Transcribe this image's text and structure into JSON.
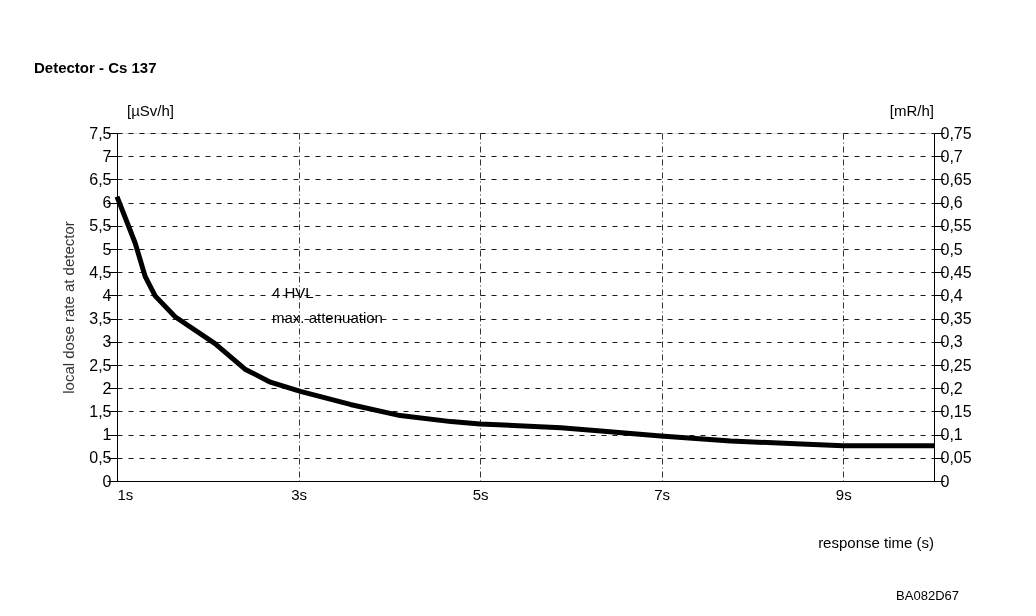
{
  "chart_data": {
    "type": "line",
    "title": "Detector - Cs 137",
    "xlabel": "response time (s)",
    "ylabel": "local dose rate at detector",
    "y2label": "[mR/h]",
    "annotations": [
      "[µSv/h]",
      "4 HVL",
      "max. attenuation",
      "BA082D67"
    ],
    "series": [
      {
        "color": "#000000",
        "x": [
          1,
          1.2,
          1.31,
          1.42,
          1.64,
          2.08,
          2.41,
          2.69,
          3.02,
          3.57,
          4.12,
          4.68,
          5.0,
          5.89,
          6.33,
          6.99,
          7.76,
          8.54,
          9,
          10
        ],
        "values": [
          6.13,
          5.13,
          4.41,
          3.99,
          3.54,
          2.96,
          2.41,
          2.13,
          1.93,
          1.65,
          1.41,
          1.28,
          1.23,
          1.15,
          1.08,
          0.97,
          0.86,
          0.8,
          0.76,
          0.76
        ]
      }
    ],
    "xlim": [
      1,
      10
    ],
    "xticks": [
      {
        "value": 1,
        "label": "1s"
      },
      {
        "value": 3,
        "label": "3s"
      },
      {
        "value": 5,
        "label": "5s"
      },
      {
        "value": 7,
        "label": "7s"
      },
      {
        "value": 9,
        "label": "9s"
      }
    ],
    "ylim": [
      0,
      7.5
    ],
    "yticks": [
      0,
      {
        "value": 0.5,
        "label": "0,5"
      },
      1,
      {
        "value": 1.5,
        "label": "1,5"
      },
      2,
      {
        "value": 2.5,
        "label": "2,5"
      },
      3,
      {
        "value": 3.5,
        "label": "3,5"
      },
      4,
      {
        "value": 4.5,
        "label": "4,5"
      },
      5,
      {
        "value": 5.5,
        "label": "5,5"
      },
      6,
      {
        "value": 6.5,
        "label": "6,5"
      },
      7,
      {
        "value": 7.5,
        "label": "7,5"
      }
    ],
    "y2lim": [
      0,
      0.75
    ],
    "y2ticks": [
      0,
      {
        "value": 0.05,
        "label": "0,05"
      },
      {
        "value": 0.1,
        "label": "0,1"
      },
      {
        "value": 0.15,
        "label": "0,15"
      },
      {
        "value": 0.2,
        "label": "0,2"
      },
      {
        "value": 0.25,
        "label": "0,25"
      },
      {
        "value": 0.3,
        "label": "0,3"
      },
      {
        "value": 0.35,
        "label": "0,35"
      },
      {
        "value": 0.4,
        "label": "0,4"
      },
      {
        "value": 0.45,
        "label": "0,45"
      },
      {
        "value": 0.5,
        "label": "0,5"
      },
      {
        "value": 0.55,
        "label": "0,55"
      },
      {
        "value": 0.6,
        "label": "0,6"
      },
      {
        "value": 0.65,
        "label": "0,65"
      },
      {
        "value": 0.7,
        "label": "0,7"
      },
      {
        "value": 0.75,
        "label": "0,75"
      }
    ],
    "grid": true,
    "legend": false,
    "marker": "none",
    "line_style": "solid"
  }
}
